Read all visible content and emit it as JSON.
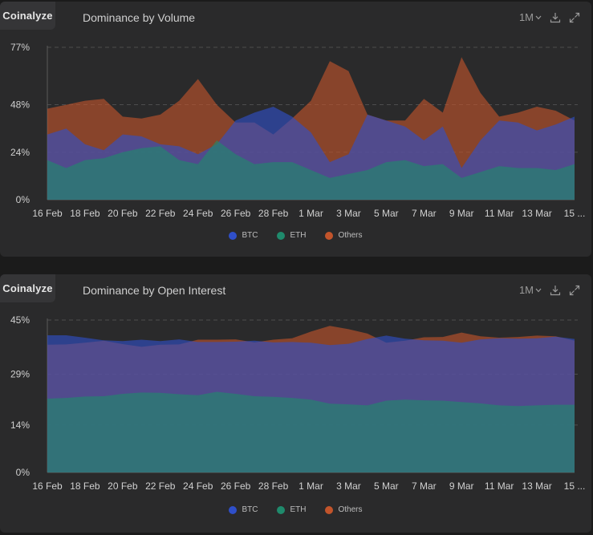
{
  "brand": "Coinalyze",
  "range_label": "1M",
  "colors": {
    "btc": "#2f4fc9",
    "eth": "#1f8a6c",
    "others": "#c2542b",
    "grid": "#4d4d4d",
    "axis_text": "#d0d0d0"
  },
  "legend": [
    {
      "name": "BTC",
      "color": "#2f4fc9"
    },
    {
      "name": "ETH",
      "color": "#1f8a6c"
    },
    {
      "name": "Others",
      "color": "#c2542b"
    }
  ],
  "chart_data": [
    {
      "type": "area",
      "title": "Dominance by Volume",
      "x": [
        "16 Feb",
        "17 Feb",
        "18 Feb",
        "19 Feb",
        "20 Feb",
        "21 Feb",
        "22 Feb",
        "23 Feb",
        "24 Feb",
        "25 Feb",
        "26 Feb",
        "27 Feb",
        "28 Feb",
        "29 Feb",
        "1 Mar",
        "2 Mar",
        "3 Mar",
        "4 Mar",
        "5 Mar",
        "6 Mar",
        "7 Mar",
        "8 Mar",
        "9 Mar",
        "10 Mar",
        "11 Mar",
        "12 Mar",
        "13 Mar",
        "14 Mar",
        "15 Mar"
      ],
      "x_tick_labels": [
        "16 Feb",
        "18 Feb",
        "20 Feb",
        "22 Feb",
        "24 Feb",
        "26 Feb",
        "28 Feb",
        "1 Mar",
        "3 Mar",
        "5 Mar",
        "7 Mar",
        "9 Mar",
        "11 Mar",
        "13 Mar",
        "15 ..."
      ],
      "y_ticks": [
        "0%",
        "24%",
        "48%",
        "77%"
      ],
      "y_tick_values": [
        0,
        24,
        48,
        77
      ],
      "ylim": [
        0,
        77
      ],
      "series": [
        {
          "name": "BTC",
          "values": [
            33,
            36,
            28,
            25,
            33,
            32,
            28,
            27,
            23,
            28,
            40,
            44,
            47,
            42,
            34,
            19,
            23,
            43,
            40,
            37,
            30,
            37,
            16,
            30,
            40,
            39,
            35,
            38,
            42
          ]
        },
        {
          "name": "ETH",
          "values": [
            20,
            16,
            20,
            21,
            24,
            26,
            27,
            20,
            18,
            30,
            23,
            18,
            19,
            19,
            15,
            11,
            13,
            15,
            19,
            20,
            17,
            18,
            11,
            14,
            17,
            16,
            16,
            15,
            18
          ]
        },
        {
          "name": "Others",
          "values": [
            46,
            48,
            50,
            51,
            42,
            41,
            43,
            50,
            61,
            48,
            39,
            39,
            33,
            41,
            50,
            70,
            65,
            43,
            40,
            40,
            51,
            44,
            72,
            54,
            42,
            44,
            47,
            45,
            40
          ]
        }
      ]
    },
    {
      "type": "area",
      "title": "Dominance by Open Interest",
      "x": [
        "16 Feb",
        "17 Feb",
        "18 Feb",
        "19 Feb",
        "20 Feb",
        "21 Feb",
        "22 Feb",
        "23 Feb",
        "24 Feb",
        "25 Feb",
        "26 Feb",
        "27 Feb",
        "28 Feb",
        "29 Feb",
        "1 Mar",
        "2 Mar",
        "3 Mar",
        "4 Mar",
        "5 Mar",
        "6 Mar",
        "7 Mar",
        "8 Mar",
        "9 Mar",
        "10 Mar",
        "11 Mar",
        "12 Mar",
        "13 Mar",
        "14 Mar",
        "15 Mar"
      ],
      "x_tick_labels": [
        "16 Feb",
        "18 Feb",
        "20 Feb",
        "22 Feb",
        "24 Feb",
        "26 Feb",
        "28 Feb",
        "1 Mar",
        "3 Mar",
        "5 Mar",
        "7 Mar",
        "9 Mar",
        "11 Mar",
        "13 Mar",
        "15 ..."
      ],
      "y_ticks": [
        "0%",
        "14%",
        "29%",
        "45%"
      ],
      "y_tick_values": [
        0,
        14,
        29,
        45
      ],
      "ylim": [
        0,
        45
      ],
      "series": [
        {
          "name": "BTC",
          "values": [
            40.5,
            40.5,
            39.8,
            39,
            38.8,
            39.2,
            38.8,
            39.3,
            38.5,
            38.5,
            38.6,
            38.9,
            38.4,
            38.5,
            38.3,
            37.6,
            38,
            39.4,
            40.4,
            39.5,
            39,
            38.9,
            38.3,
            39.3,
            39.6,
            39.5,
            39.6,
            40.1,
            39.4
          ]
        },
        {
          "name": "ETH",
          "values": [
            21.8,
            22,
            22.4,
            22.5,
            23.2,
            23.6,
            23.5,
            23.1,
            22.8,
            23.8,
            23.2,
            22.5,
            22.3,
            22,
            21.5,
            20.3,
            20.1,
            19.8,
            21.2,
            21.5,
            21.3,
            21.2,
            20.8,
            20.4,
            19.8,
            19.6,
            19.8,
            20,
            20
          ]
        },
        {
          "name": "Others",
          "values": [
            37.7,
            37.8,
            38.3,
            38.9,
            37.9,
            37.1,
            37.7,
            37.8,
            39.2,
            39.2,
            39.3,
            38.4,
            39.2,
            39.6,
            41.6,
            43.3,
            42.3,
            41,
            38.3,
            38.9,
            39.9,
            40,
            41.3,
            40.2,
            39.8,
            40,
            40.4,
            40.2,
            38.9
          ]
        }
      ]
    }
  ]
}
